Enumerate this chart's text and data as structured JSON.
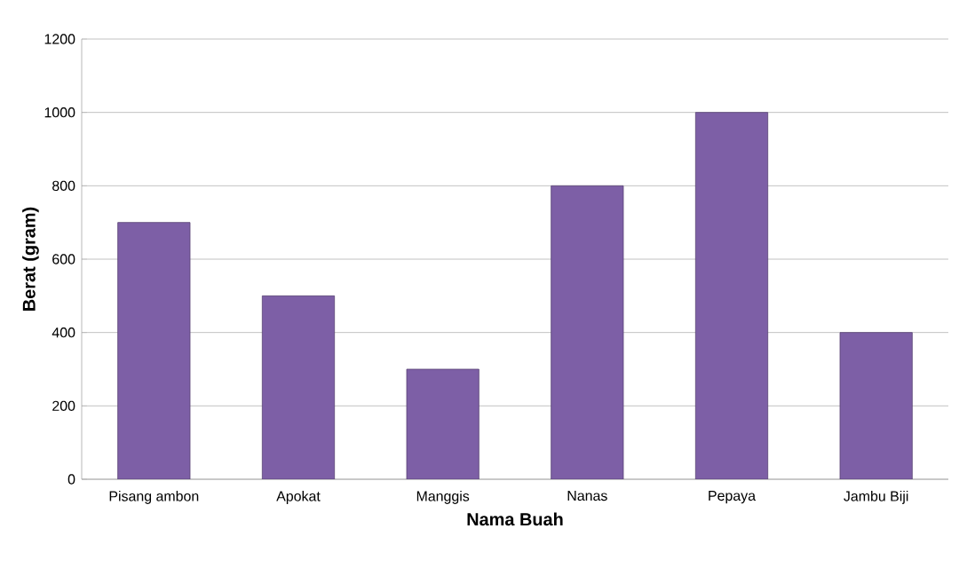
{
  "chart_data": {
    "type": "bar",
    "xlabel": "Nama Buah",
    "ylabel": "Berat (gram)",
    "categories": [
      "Pisang ambon",
      "Apokat",
      "Manggis",
      "Nanas",
      "Pepaya",
      "Jambu Biji"
    ],
    "values": [
      700,
      500,
      300,
      800,
      1000,
      400
    ],
    "color": "#7d5fa6",
    "ylim": [
      0,
      1200
    ],
    "yticks": [
      0,
      200,
      400,
      600,
      800,
      1000,
      1200
    ],
    "grid": "y"
  }
}
